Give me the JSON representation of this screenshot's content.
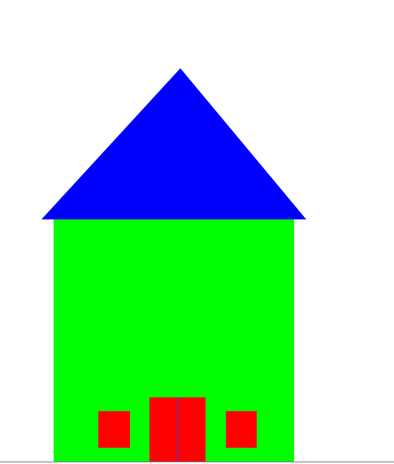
{
  "drawing": {
    "colors": {
      "background": "#ffffff",
      "roof": "#0000ff",
      "walls": "#00ff00",
      "door": "#ff0000",
      "door_seam": "#6a2bb3",
      "windows": "#ff0000",
      "frame_line": "#8a8a8a"
    },
    "shapes": [
      "roof",
      "walls",
      "door",
      "left-window",
      "right-window"
    ]
  }
}
